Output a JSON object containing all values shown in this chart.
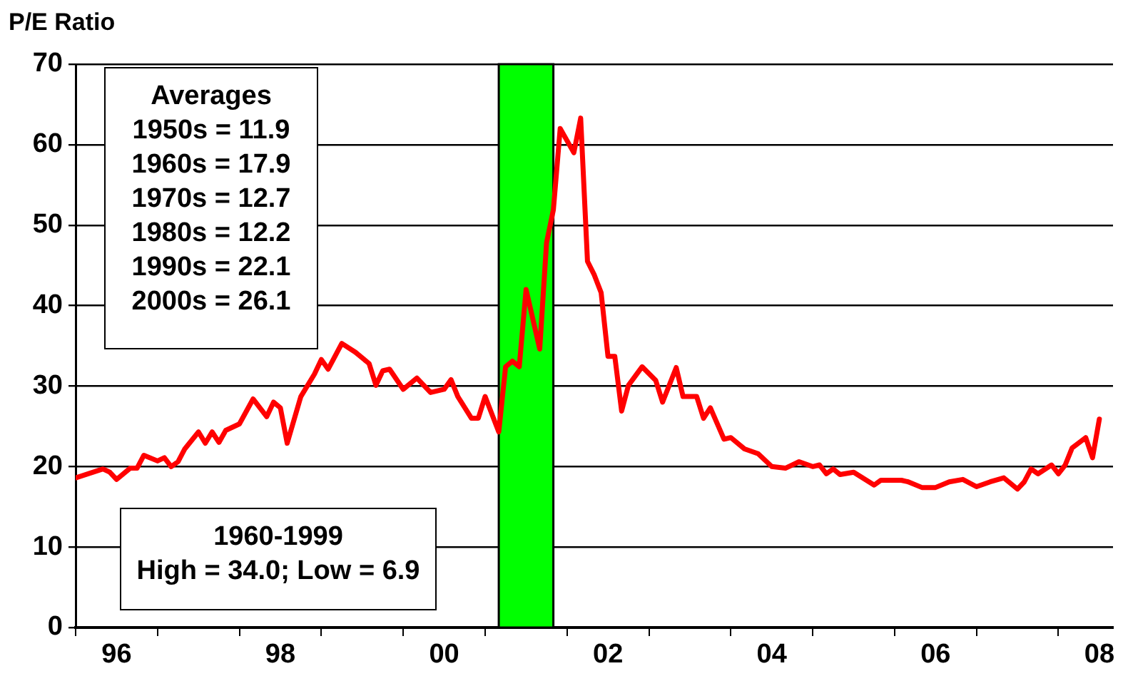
{
  "chart_data": {
    "type": "line",
    "ylabel": "P/E Ratio",
    "x": [
      "1996-01",
      "1996-05",
      "1996-06",
      "1996-07",
      "1996-09",
      "1996-10",
      "1996-11",
      "1997-01",
      "1997-02",
      "1997-03",
      "1997-04",
      "1997-05",
      "1997-07",
      "1997-08",
      "1997-09",
      "1997-10",
      "1997-11",
      "1998-01",
      "1998-03",
      "1998-05",
      "1998-06",
      "1998-07",
      "1998-08",
      "1998-10",
      "1998-12",
      "1999-01",
      "1999-02",
      "1999-04",
      "1999-06",
      "1999-08",
      "1999-09",
      "1999-10",
      "1999-11",
      "2000-01",
      "2000-03",
      "2000-05",
      "2000-07",
      "2000-08",
      "2000-09",
      "2000-11",
      "2000-12",
      "2001-01",
      "2001-03",
      "2001-04",
      "2001-05",
      "2001-06",
      "2001-07",
      "2001-09",
      "2001-10",
      "2001-11",
      "2001-12",
      "2002-02",
      "2002-03",
      "2002-04",
      "2002-05",
      "2002-06",
      "2002-07",
      "2002-08",
      "2002-09",
      "2002-10",
      "2002-12",
      "2003-02",
      "2003-03",
      "2003-05",
      "2003-06",
      "2003-08",
      "2003-09",
      "2003-10",
      "2003-12",
      "2004-01",
      "2004-03",
      "2004-05",
      "2004-07",
      "2004-09",
      "2004-11",
      "2005-01",
      "2005-02",
      "2005-03",
      "2005-04",
      "2005-05",
      "2005-07",
      "2005-10",
      "2005-11",
      "2006-02",
      "2006-03",
      "2006-05",
      "2006-07",
      "2006-09",
      "2006-11",
      "2007-01",
      "2007-03",
      "2007-05",
      "2007-07",
      "2007-08",
      "2007-09",
      "2007-10",
      "2007-12",
      "2008-01",
      "2008-02",
      "2008-03",
      "2008-05",
      "2008-06",
      "2008-07"
    ],
    "series": [
      {
        "color": "#ff0000",
        "values": [
          18.6,
          19.7,
          19.3,
          18.4,
          19.8,
          19.8,
          21.4,
          20.7,
          21.1,
          20.0,
          20.6,
          22.2,
          24.3,
          22.9,
          24.3,
          23.0,
          24.5,
          25.3,
          28.4,
          26.2,
          28.0,
          27.3,
          22.9,
          28.7,
          31.5,
          33.3,
          32.1,
          35.3,
          34.2,
          32.8,
          30.1,
          31.9,
          32.1,
          29.6,
          31.0,
          29.2,
          29.6,
          30.8,
          28.7,
          26.0,
          26.0,
          28.7,
          24.3,
          32.4,
          33.1,
          32.4,
          42.0,
          34.6,
          47.8,
          51.9,
          62.0,
          59.0,
          63.3,
          45.5,
          43.8,
          41.6,
          33.7,
          33.7,
          26.9,
          30.1,
          32.4,
          30.7,
          28.0,
          32.3,
          28.7,
          28.7,
          26.0,
          27.3,
          23.4,
          23.6,
          22.2,
          21.6,
          20.0,
          19.8,
          20.6,
          20.0,
          20.2,
          19.1,
          19.7,
          19.0,
          19.3,
          17.7,
          18.3,
          18.3,
          18.1,
          17.4,
          17.4,
          18.1,
          18.4,
          17.5,
          18.1,
          18.6,
          17.2,
          18.1,
          19.7,
          19.1,
          20.2,
          19.1,
          20.2,
          22.3,
          23.6,
          21.1,
          25.9
        ]
      }
    ],
    "xlim": [
      "1996-01",
      "2008-09"
    ],
    "xticks": [
      {
        "value": "1996",
        "label": null
      },
      {
        "value": "1996-07",
        "label": "96"
      },
      {
        "value": "1997",
        "label": null
      },
      {
        "value": "1998",
        "label": null
      },
      {
        "value": "1998-07",
        "label": "98"
      },
      {
        "value": "1999",
        "label": null
      },
      {
        "value": "2000",
        "label": null
      },
      {
        "value": "2000-07",
        "label": "00"
      },
      {
        "value": "2001",
        "label": null
      },
      {
        "value": "2002",
        "label": null
      },
      {
        "value": "2002-07",
        "label": "02"
      },
      {
        "value": "2003",
        "label": null
      },
      {
        "value": "2004",
        "label": null
      },
      {
        "value": "2004-07",
        "label": "04"
      },
      {
        "value": "2005",
        "label": null
      },
      {
        "value": "2006",
        "label": null
      },
      {
        "value": "2006-07",
        "label": "06"
      },
      {
        "value": "2007",
        "label": null
      },
      {
        "value": "2008",
        "label": null
      },
      {
        "value": "2008-07",
        "label": "08"
      }
    ],
    "ylim": [
      0,
      70
    ],
    "yticks": [
      0,
      10,
      20,
      30,
      40,
      50,
      60,
      70
    ],
    "grid": "y",
    "legend": false,
    "marker": "none",
    "line_style": "solid",
    "bands": [
      {
        "axis": "x",
        "from": "2001-03",
        "to": "2001-11",
        "color": "#00ff00"
      }
    ],
    "annotations": [
      "Averages\n1950s = 11.9\n1960s = 17.9\n1970s = 12.7\n1980s = 12.2\n1990s = 22.1\n2000s = 26.1",
      "1960-1999\nHigh = 34.0; Low = 6.9"
    ]
  }
}
